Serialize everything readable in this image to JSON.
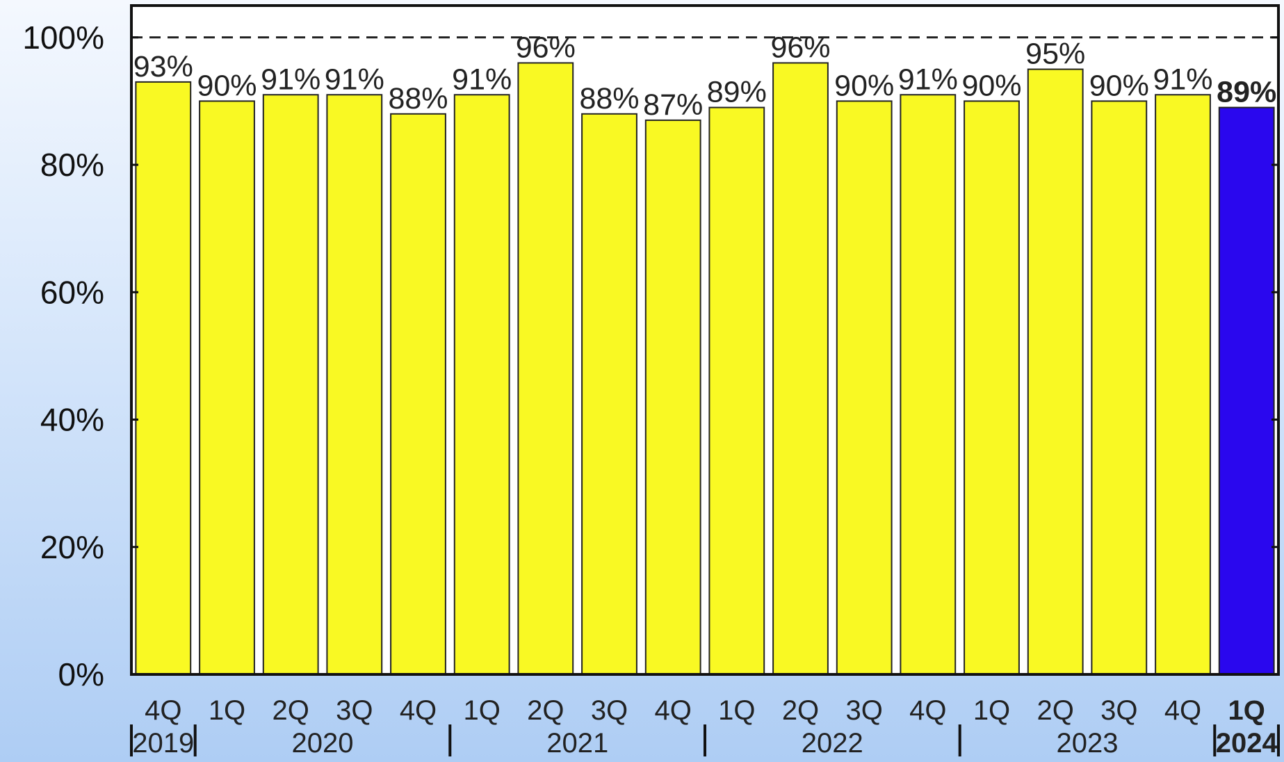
{
  "chart_data": {
    "type": "bar",
    "categories": [
      "4Q",
      "1Q",
      "2Q",
      "3Q",
      "4Q",
      "1Q",
      "2Q",
      "3Q",
      "4Q",
      "1Q",
      "2Q",
      "3Q",
      "4Q",
      "1Q",
      "2Q",
      "3Q",
      "4Q",
      "1Q"
    ],
    "values": [
      93,
      90,
      91,
      91,
      88,
      91,
      96,
      88,
      87,
      89,
      96,
      90,
      91,
      90,
      95,
      90,
      91,
      89
    ],
    "data_labels": [
      "93%",
      "90%",
      "91%",
      "91%",
      "88%",
      "91%",
      "96%",
      "88%",
      "87%",
      "89%",
      "96%",
      "90%",
      "91%",
      "90%",
      "95%",
      "90%",
      "91%",
      "89%"
    ],
    "year_groups": [
      {
        "label": "2019",
        "start": 0,
        "end": 0
      },
      {
        "label": "2020",
        "start": 1,
        "end": 4
      },
      {
        "label": "2021",
        "start": 5,
        "end": 8
      },
      {
        "label": "2022",
        "start": 9,
        "end": 12
      },
      {
        "label": "2023",
        "start": 13,
        "end": 16
      },
      {
        "label": "2024",
        "start": 17,
        "end": 17
      }
    ],
    "highlight_index": 17,
    "y_ticks": [
      "0%",
      "20%",
      "40%",
      "60%",
      "80%",
      "100%"
    ],
    "y_tick_values": [
      0,
      20,
      40,
      60,
      80,
      100
    ],
    "ylim": [
      0,
      105
    ],
    "reference_line": 100,
    "reference_line_style": "dashed",
    "grid": false,
    "colors": {
      "bar": "#f9f923",
      "bar_highlight": "#2a07ee",
      "bar_outline": "#222222",
      "axis": "#111111"
    }
  }
}
